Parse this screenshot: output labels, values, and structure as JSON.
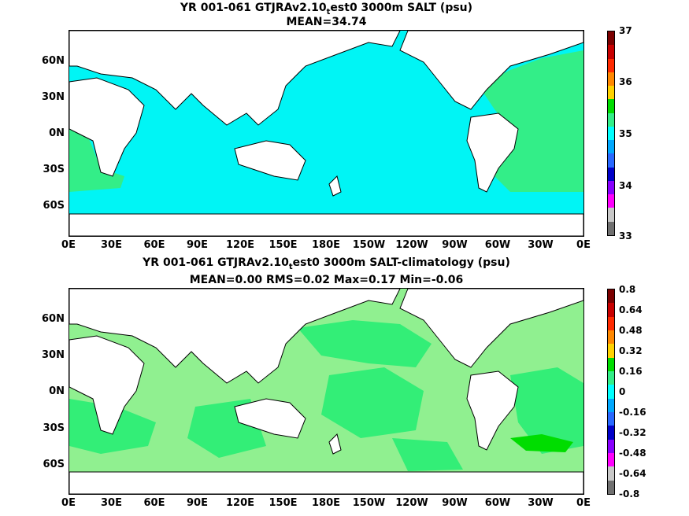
{
  "top": {
    "title_a": "YR 001-061 GTJRAv2.10",
    "title_sub": "t",
    "title_b": "est0 3000m SALT (psu)",
    "subtitle": "MEAN=34.74",
    "colorbar_labels": [
      "37",
      "36",
      "35",
      "34",
      "33"
    ]
  },
  "bottom": {
    "title_a": "YR 001-061 GTJRAv2.10",
    "title_sub": "t",
    "title_b": "est0 3000m SALT-climatology (psu)",
    "subtitle": "MEAN=0.00   RMS=0.02   Max=0.17   Min=-0.06",
    "colorbar_labels": [
      "0.8",
      "0.64",
      "0.48",
      "0.32",
      "0.16",
      "0",
      "-0.16",
      "-0.32",
      "-0.48",
      "-0.64",
      "-0.8"
    ]
  },
  "axes": {
    "y_ticks": [
      "60N",
      "30N",
      "0N",
      "30S",
      "60S"
    ],
    "x_ticks": [
      "0E",
      "30E",
      "60E",
      "90E",
      "120E",
      "150E",
      "180E",
      "150W",
      "120W",
      "90W",
      "60W",
      "30W",
      "0E"
    ]
  },
  "colors": {
    "top_field": "#00f5f5",
    "top_atlantic": "#33ee88",
    "bottom_light": "#90f090",
    "bottom_mid": "#33ee77",
    "bottom_strong": "#00dd00",
    "land": "#ffffff",
    "coast": "#000000",
    "colorbar": [
      "#7b0000",
      "#c80000",
      "#ff2a00",
      "#ff8800",
      "#ffd200",
      "#00dd00",
      "#33ee88",
      "#00ffff",
      "#00a8ff",
      "#2868ff",
      "#0000c8",
      "#8800ff",
      "#ff00ff",
      "#c8c8c8",
      "#707070"
    ]
  }
}
